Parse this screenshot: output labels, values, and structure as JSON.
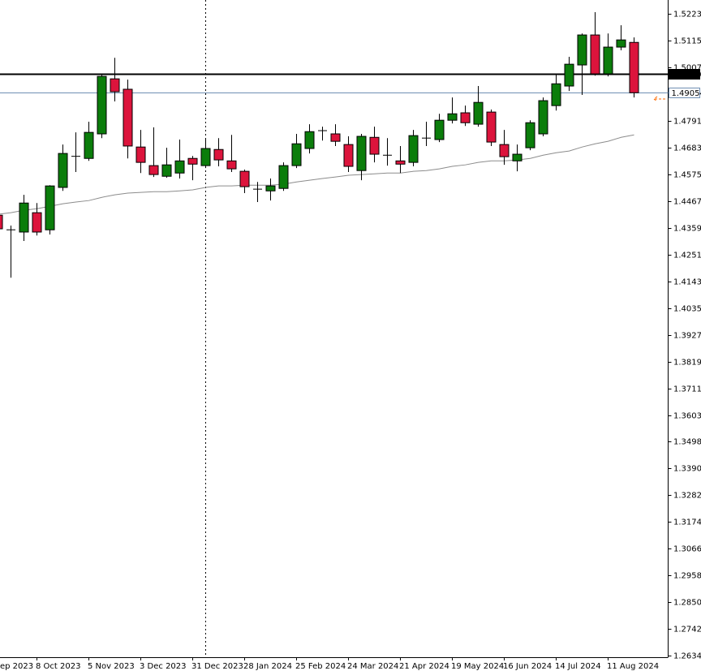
{
  "chart_data": {
    "type": "candlestick",
    "categories": [
      "ep 2023",
      null,
      null,
      "8 Oct 2023",
      null,
      null,
      null,
      "5 Nov 2023",
      null,
      null,
      null,
      "3 Dec 2023",
      null,
      null,
      null,
      "31 Dec 2023",
      null,
      null,
      null,
      "28 Jan 2024",
      null,
      null,
      null,
      "25 Feb 2024",
      null,
      null,
      null,
      "24 Mar 2024",
      null,
      null,
      null,
      "21 Apr 2024",
      null,
      null,
      null,
      "19 May 2024",
      null,
      null,
      null,
      "16 Jun 2024",
      null,
      null,
      null,
      "14 Jul 2024",
      null,
      null,
      null,
      "11 Aug 2024",
      null,
      null
    ],
    "open": [
      1.4411,
      1.4352,
      1.4343,
      1.4421,
      1.4352,
      1.4523,
      1.4647,
      1.464,
      1.4739,
      1.4961,
      1.4919,
      1.4686,
      1.4611,
      1.4568,
      1.4581,
      1.464,
      1.4611,
      1.4676,
      1.463,
      1.4588,
      1.4516,
      1.4509,
      1.4519,
      1.4611,
      1.468,
      1.4752,
      1.4739,
      1.4696,
      1.4591,
      1.4725,
      1.4653,
      1.463,
      1.4624,
      1.4722,
      1.4716,
      1.4794,
      1.4824,
      1.4778,
      1.4827,
      1.4696,
      1.463,
      1.4683,
      1.4739,
      1.4853,
      1.4932,
      1.5017,
      1.5138,
      1.4981,
      1.5089,
      1.5108
    ],
    "high": [
      1.4421,
      1.4369,
      1.4493,
      1.446,
      1.4532,
      1.4696,
      1.4745,
      1.4788,
      1.4977,
      1.5046,
      1.4958,
      1.4755,
      1.4765,
      1.4683,
      1.4716,
      1.465,
      1.4722,
      1.4722,
      1.4735,
      1.4595,
      1.4545,
      1.4559,
      1.4624,
      1.4739,
      1.4778,
      1.4768,
      1.4778,
      1.4729,
      1.4739,
      1.4768,
      1.4722,
      1.469,
      1.4755,
      1.4788,
      1.482,
      1.4886,
      1.4853,
      1.4932,
      1.4837,
      1.4755,
      1.4696,
      1.4794,
      1.4886,
      1.4977,
      1.505,
      1.5144,
      1.523,
      1.5144,
      1.5177,
      1.5128
    ],
    "low": [
      1.4349,
      1.4159,
      1.4307,
      1.4329,
      1.4333,
      1.4509,
      1.4585,
      1.463,
      1.4722,
      1.487,
      1.464,
      1.4581,
      1.4565,
      1.4562,
      1.4559,
      1.4552,
      1.4601,
      1.4608,
      1.4585,
      1.45,
      1.4464,
      1.447,
      1.4509,
      1.4601,
      1.466,
      1.4712,
      1.469,
      1.4585,
      1.4552,
      1.4624,
      1.4611,
      1.4581,
      1.4608,
      1.469,
      1.4706,
      1.4781,
      1.4771,
      1.4768,
      1.469,
      1.4614,
      1.4588,
      1.4673,
      1.4729,
      1.4833,
      1.4912,
      1.4896,
      1.4974,
      1.4971,
      1.5076,
      1.4886
    ],
    "close": [
      1.4356,
      1.4352,
      1.446,
      1.4343,
      1.4529,
      1.466,
      1.465,
      1.4745,
      1.4971,
      1.4909,
      1.469,
      1.4624,
      1.4575,
      1.4614,
      1.463,
      1.4617,
      1.468,
      1.4634,
      1.4598,
      1.4526,
      1.4516,
      1.4529,
      1.4611,
      1.4699,
      1.4748,
      1.4752,
      1.4709,
      1.4608,
      1.4729,
      1.4657,
      1.4653,
      1.4617,
      1.4732,
      1.4722,
      1.4794,
      1.482,
      1.4784,
      1.4866,
      1.4706,
      1.4647,
      1.4657,
      1.4784,
      1.4873,
      1.4941,
      1.502,
      1.5138,
      1.4981,
      1.5089,
      1.5118,
      1.4905
    ],
    "up_color": "#0b7d0b",
    "down_color": "#dc143c",
    "moving_average": {
      "color": "#8c8c8c",
      "values": [
        1.4415,
        1.4421,
        1.4431,
        1.4437,
        1.4447,
        1.4457,
        1.4464,
        1.447,
        1.4483,
        1.4493,
        1.45,
        1.4503,
        1.4506,
        1.4506,
        1.4509,
        1.4513,
        1.4523,
        1.4529,
        1.4529,
        1.4532,
        1.4532,
        1.4532,
        1.4536,
        1.4545,
        1.4552,
        1.4559,
        1.4565,
        1.4572,
        1.4575,
        1.4578,
        1.4581,
        1.4581,
        1.4588,
        1.4591,
        1.4598,
        1.4608,
        1.4614,
        1.4624,
        1.463,
        1.463,
        1.4634,
        1.464,
        1.4653,
        1.4663,
        1.467,
        1.4686,
        1.4699,
        1.4709,
        1.4725,
        1.4735
      ]
    },
    "levels": [
      {
        "value": 1.498,
        "label": "1.49800",
        "color": "#000000"
      },
      {
        "value": 1.49054,
        "label": "1.49054",
        "color": "#6f8fb3"
      }
    ],
    "ylim": [
      1.2628,
      1.5279
    ],
    "yticks": [
      {
        "value": 1.5223,
        "label": "1.52230"
      },
      {
        "value": 1.5115,
        "label": "1.51150"
      },
      {
        "value": 1.5007,
        "label": "1.50070"
      },
      {
        "value": 1.4791,
        "label": "1.47910"
      },
      {
        "value": 1.4683,
        "label": "1.46830"
      },
      {
        "value": 1.4575,
        "label": "1.45750"
      },
      {
        "value": 1.4467,
        "label": "1.44670"
      },
      {
        "value": 1.4359,
        "label": "1.43590"
      },
      {
        "value": 1.4251,
        "label": "1.42510"
      },
      {
        "value": 1.4143,
        "label": "1.41430"
      },
      {
        "value": 1.4035,
        "label": "1.40350"
      },
      {
        "value": 1.3927,
        "label": "1.39270"
      },
      {
        "value": 1.3819,
        "label": "1.38190"
      },
      {
        "value": 1.3711,
        "label": "1.37110"
      },
      {
        "value": 1.3603,
        "label": "1.36030"
      },
      {
        "value": 1.3498,
        "label": "1.34980"
      },
      {
        "value": 1.339,
        "label": "1.33900"
      },
      {
        "value": 1.3282,
        "label": "1.32820"
      },
      {
        "value": 1.3174,
        "label": "1.31740"
      },
      {
        "value": 1.3066,
        "label": "1.30660"
      },
      {
        "value": 1.2958,
        "label": "1.29580"
      },
      {
        "value": 1.285,
        "label": "1.28500"
      },
      {
        "value": 1.2742,
        "label": "1.27420"
      },
      {
        "value": 1.2634,
        "label": "1.26340"
      }
    ]
  }
}
